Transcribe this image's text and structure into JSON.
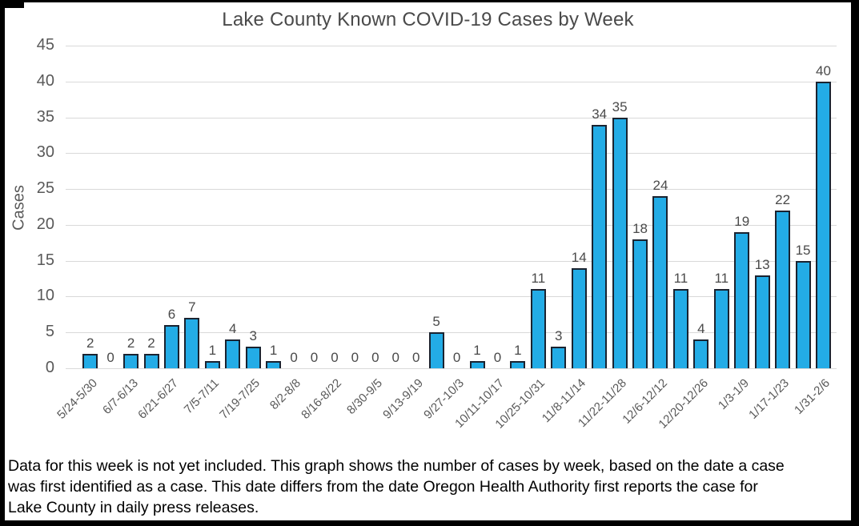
{
  "chart_data": {
    "type": "bar",
    "title": "Lake County Known COVID-19 Cases by Week",
    "xlabel": "",
    "ylabel": "Cases",
    "ylim": [
      0,
      45
    ],
    "yticks": [
      45,
      40,
      35,
      30,
      25,
      20,
      15,
      10,
      5,
      0
    ],
    "grid": "horizontal",
    "legend_position": "none",
    "values": [
      2,
      0,
      2,
      2,
      6,
      7,
      1,
      4,
      3,
      1,
      0,
      0,
      0,
      0,
      0,
      0,
      0,
      5,
      0,
      1,
      0,
      1,
      11,
      3,
      14,
      34,
      35,
      18,
      24,
      11,
      4,
      11,
      19,
      13,
      22,
      15,
      40
    ],
    "x_tick_labels": [
      "5/24-5/30",
      "6/7-6/13",
      "6/21-6/27",
      "7/5-7/11",
      "7/19-7/25",
      "8/2-8/8",
      "8/16-8/22",
      "8/30-9/5",
      "9/13-9/19",
      "9/27-10/3",
      "10/11-10/17",
      "10/25-10/31",
      "11/8-11/14",
      "11/22-11/28",
      "12/6-12/12",
      "12/20-12/26",
      "1/3-1/9",
      "1/17-1/23",
      "1/31-2/6"
    ],
    "x_label_every": 2,
    "bar_color": "#23ACE6",
    "bar_border_color": "#1A2330",
    "gridline_color": "#D9D9D9",
    "title_color": "#4A4A4A",
    "tick_color": "#595959"
  },
  "caption": {
    "text": "Data for this week is not yet included. This graph shows the number of cases by week, based on the date a case\nwas first identified as a case. This date differs from the date Oregon Health Authority first reports the case for\nLake County in daily press releases."
  }
}
